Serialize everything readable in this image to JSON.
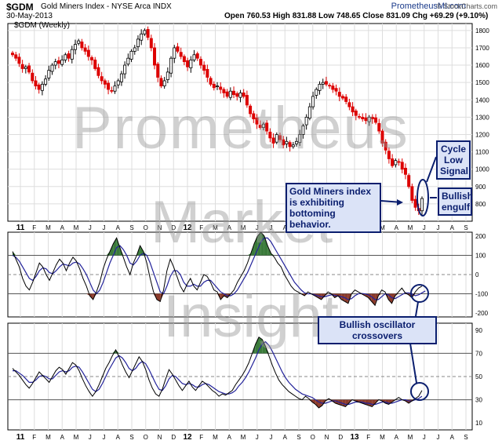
{
  "header": {
    "symbol": "$GDM",
    "name": "Gold Miners Index - NYSE Arca INDX",
    "date": "30-May-2013",
    "ohlc": "Open 760.53  High 831.88  Low 748.65  Close 831.09  Chg +69.29 (+9.10%)",
    "brand_primary": "PrometheusMI.com",
    "brand_secondary": "© StockCharts.com"
  },
  "panel_label": "$GDM (Weekly)",
  "watermark": [
    "Prometheus",
    "Market",
    "Insight"
  ],
  "annotations": {
    "cycle_low": "Cycle Low Signal",
    "bottoming": "Gold Miners index is exhibiting bottoming behavior.",
    "bullish_engulf": "Bullish engulf",
    "crossovers": "Bullish oscillator crossovers"
  },
  "colors": {
    "up": "#000000",
    "down": "#dd0000",
    "osc_fast": "#000000",
    "osc_slow": "#22229a",
    "fill_high": "#3a7a3a",
    "fill_low": "#8b3a2a",
    "annotation": "#0a1e6e"
  },
  "chart_data": [
    {
      "type": "candlestick",
      "title": "$GDM (Weekly)",
      "x_tick_labels": [
        "11",
        "F",
        "M",
        "A",
        "M",
        "J",
        "J",
        "A",
        "S",
        "O",
        "N",
        "D",
        "12",
        "F",
        "M",
        "A",
        "M",
        "J",
        "J",
        "A",
        "S",
        "O",
        "N",
        "D",
        "13",
        "F",
        "M",
        "A",
        "M",
        "J",
        "J",
        "A",
        "S"
      ],
      "y_ticks": [
        800,
        900,
        1000,
        1100,
        1200,
        1300,
        1400,
        1500,
        1600,
        1700,
        1800
      ],
      "ylim": [
        700,
        1840
      ],
      "grid": true,
      "weekly_close": [
        1660,
        1640,
        1610,
        1580,
        1590,
        1560,
        1510,
        1480,
        1460,
        1490,
        1520,
        1570,
        1600,
        1620,
        1610,
        1630,
        1660,
        1640,
        1690,
        1720,
        1740,
        1700,
        1680,
        1650,
        1630,
        1580,
        1540,
        1510,
        1490,
        1460,
        1450,
        1480,
        1510,
        1550,
        1600,
        1640,
        1680,
        1700,
        1750,
        1780,
        1800,
        1760,
        1700,
        1600,
        1530,
        1480,
        1510,
        1560,
        1640,
        1700,
        1680,
        1650,
        1620,
        1590,
        1630,
        1660,
        1640,
        1600,
        1570,
        1530,
        1490,
        1470,
        1480,
        1460,
        1440,
        1420,
        1450,
        1430,
        1420,
        1440,
        1420,
        1370,
        1320,
        1290,
        1260,
        1240,
        1260,
        1220,
        1180,
        1150,
        1200,
        1170,
        1140,
        1160,
        1130,
        1140,
        1160,
        1200,
        1250,
        1300,
        1360,
        1420,
        1460,
        1490,
        1500,
        1490,
        1480,
        1460,
        1450,
        1420,
        1410,
        1390,
        1360,
        1330,
        1310,
        1300,
        1290,
        1280,
        1300,
        1290,
        1270,
        1220,
        1150,
        1110,
        1060,
        1020,
        1050,
        1040,
        1000,
        970,
        900,
        820,
        780,
        760,
        831
      ]
    },
    {
      "type": "line",
      "name": "oscillator-1",
      "y_ticks": [
        200,
        100,
        0,
        -100,
        -200
      ],
      "ylim": [
        -220,
        220
      ],
      "reference_lines": [
        100,
        -100
      ],
      "series": [
        {
          "name": "",
          "values": [
            120,
            80,
            40,
            -20,
            -60,
            -80,
            -40,
            10,
            60,
            40,
            0,
            -30,
            10,
            50,
            80,
            60,
            20,
            60,
            90,
            70,
            30,
            -20,
            -60,
            -110,
            -130,
            -90,
            -40,
            30,
            80,
            120,
            160,
            190,
            140,
            90,
            40,
            0,
            60,
            100,
            150,
            120,
            60,
            -20,
            -90,
            -130,
            -140,
            -80,
            20,
            80,
            40,
            -10,
            -60,
            -90,
            -50,
            -20,
            -60,
            -80,
            -40,
            0,
            -10,
            -40,
            -80,
            -90,
            -130,
            -110,
            -120,
            -100,
            -80,
            -40,
            -10,
            20,
            60,
            110,
            160,
            200,
            220,
            200,
            150,
            110,
            90,
            60,
            40,
            0,
            -30,
            -60,
            -80,
            -90,
            -100,
            -110,
            -90,
            -100,
            -110,
            -120,
            -130,
            -110,
            -90,
            -100,
            -120,
            -110,
            -130,
            -140,
            -150,
            -100,
            -80,
            -90,
            -100,
            -110,
            -120,
            -140,
            -160,
            -110,
            -80,
            -90,
            -130,
            -150,
            -110,
            -90,
            -70,
            -95,
            -105,
            -120,
            -90,
            -70,
            -60
          ]
        },
        {
          "name": "",
          "values": [
            100,
            90,
            70,
            40,
            10,
            -20,
            -30,
            -10,
            20,
            35,
            30,
            10,
            5,
            20,
            40,
            55,
            50,
            45,
            60,
            65,
            55,
            30,
            0,
            -40,
            -80,
            -100,
            -80,
            -40,
            10,
            60,
            100,
            140,
            150,
            130,
            100,
            60,
            50,
            70,
            100,
            110,
            100,
            60,
            10,
            -40,
            -90,
            -100,
            -60,
            -10,
            20,
            20,
            0,
            -40,
            -60,
            -60,
            -50,
            -60,
            -60,
            -40,
            -30,
            -30,
            -50,
            -70,
            -90,
            -100,
            -110,
            -110,
            -100,
            -80,
            -50,
            -20,
            10,
            50,
            90,
            130,
            170,
            190,
            190,
            170,
            140,
            110,
            80,
            50,
            20,
            -10,
            -40,
            -60,
            -80,
            -95,
            -100,
            -100,
            -105,
            -110,
            -115,
            -115,
            -110,
            -105,
            -108,
            -112,
            -115,
            -120,
            -130,
            -125,
            -110,
            -100,
            -98,
            -100,
            -105,
            -115,
            -130,
            -130,
            -115,
            -100,
            -105,
            -120,
            -125,
            -115,
            -105,
            -95,
            -95,
            -100,
            -110,
            -105,
            -95,
            -85
          ]
        }
      ]
    },
    {
      "type": "line",
      "name": "oscillator-2",
      "y_ticks": [
        90,
        70,
        50,
        30,
        10
      ],
      "ylim": [
        4,
        96
      ],
      "reference_lines": [
        70,
        30
      ],
      "series": [
        {
          "name": "",
          "values": [
            57,
            54,
            51,
            47,
            43,
            40,
            44,
            49,
            54,
            51,
            48,
            45,
            50,
            55,
            58,
            56,
            52,
            57,
            62,
            60,
            55,
            48,
            42,
            37,
            33,
            37,
            43,
            50,
            57,
            62,
            68,
            73,
            67,
            60,
            54,
            49,
            55,
            61,
            67,
            63,
            56,
            47,
            40,
            35,
            33,
            39,
            48,
            56,
            52,
            47,
            42,
            38,
            42,
            46,
            41,
            38,
            42,
            46,
            44,
            41,
            38,
            36,
            33,
            35,
            34,
            36,
            38,
            43,
            47,
            51,
            56,
            62,
            70,
            78,
            84,
            82,
            76,
            68,
            60,
            53,
            47,
            43,
            40,
            37,
            35,
            33,
            31,
            30,
            33,
            31,
            28,
            26,
            23,
            25,
            29,
            31,
            29,
            27,
            26,
            25,
            24,
            27,
            30,
            29,
            28,
            27,
            26,
            25,
            24,
            27,
            30,
            29,
            27,
            26,
            28,
            30,
            32,
            30,
            29,
            27,
            29,
            31,
            33,
            38
          ]
        },
        {
          "name": "",
          "values": [
            55,
            55,
            53,
            51,
            48,
            45,
            45,
            47,
            50,
            51,
            50,
            48,
            48,
            51,
            54,
            55,
            54,
            55,
            58,
            59,
            58,
            54,
            49,
            44,
            39,
            37,
            39,
            44,
            50,
            56,
            61,
            66,
            68,
            66,
            62,
            57,
            55,
            57,
            61,
            63,
            61,
            56,
            50,
            44,
            39,
            38,
            42,
            48,
            51,
            50,
            47,
            44,
            43,
            44,
            43,
            41,
            41,
            43,
            44,
            43,
            41,
            39,
            37,
            36,
            35,
            35,
            36,
            38,
            42,
            45,
            49,
            54,
            60,
            66,
            73,
            78,
            80,
            77,
            72,
            66,
            60,
            54,
            49,
            45,
            42,
            39,
            37,
            35,
            34,
            33,
            32,
            30,
            28,
            27,
            27,
            28,
            29,
            29,
            28,
            27,
            26,
            26,
            27,
            28,
            28,
            28,
            27,
            27,
            26,
            26,
            27,
            28,
            28,
            27,
            27,
            28,
            29,
            30,
            30,
            29,
            29,
            30,
            31,
            33
          ]
        }
      ]
    }
  ]
}
